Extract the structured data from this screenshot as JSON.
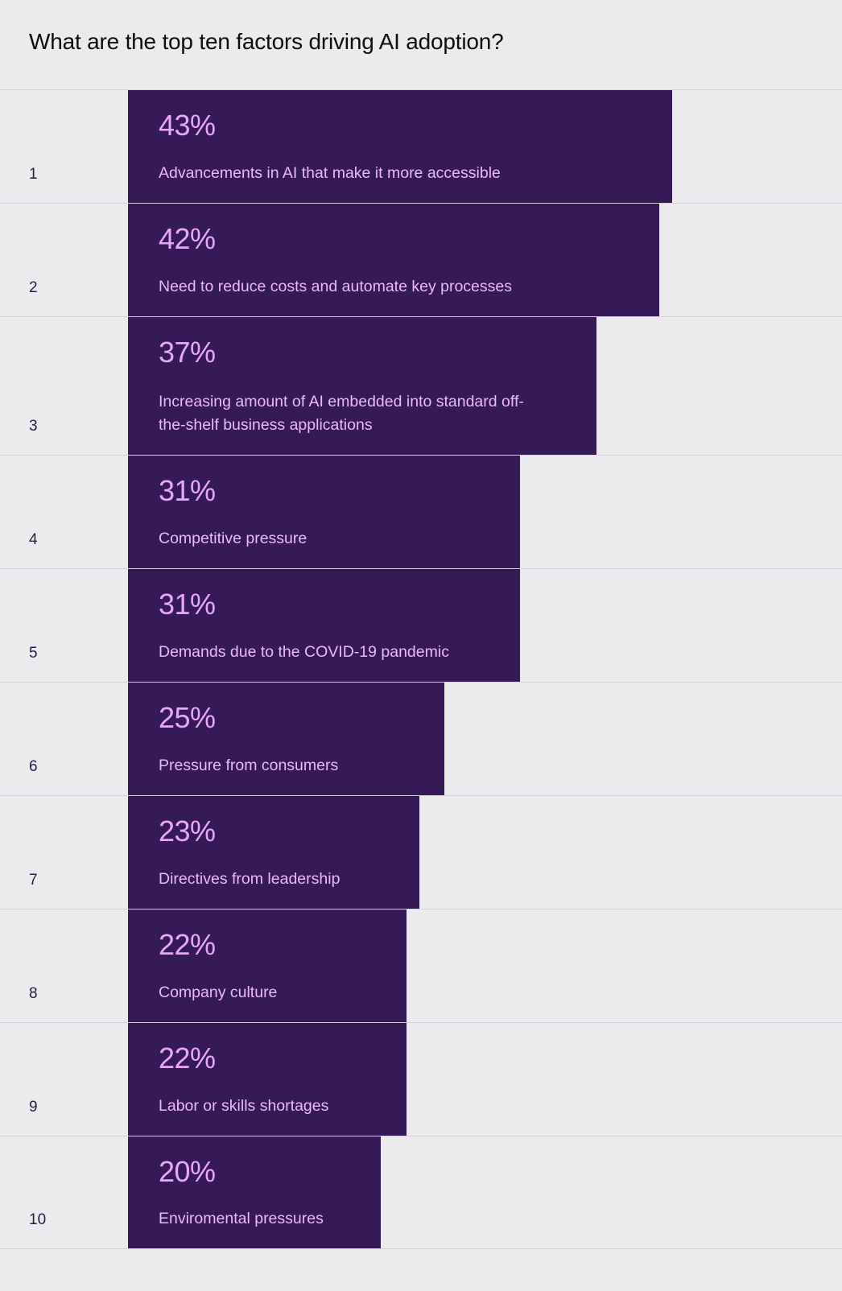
{
  "title": "What are the top ten factors driving AI adoption?",
  "colors": {
    "background": "#ebeaed",
    "bar": "#351a57",
    "value_text": "#e9a8f5",
    "label_text": "#ecbaf7",
    "rank_text": "#2a1a45"
  },
  "chart_data": {
    "type": "bar",
    "orientation": "horizontal",
    "title": "What are the top ten factors driving AI adoption?",
    "ranks": [
      "1",
      "2",
      "3",
      "4",
      "5",
      "6",
      "7",
      "8",
      "9",
      "10"
    ],
    "categories": [
      "Advancements in AI that make it more accessible",
      "Need to reduce costs and automate key processes",
      "Increasing amount of AI embedded into standard off-the-shelf business applications",
      "Competitive pressure",
      "Demands due to the COVID-19 pandemic",
      "Pressure from consumers",
      "Directives from leadership",
      "Company culture",
      "Labor or skills shortages",
      "Enviromental pressures"
    ],
    "values": [
      43,
      42,
      37,
      31,
      31,
      25,
      23,
      22,
      22,
      20
    ],
    "value_labels": [
      "43%",
      "42%",
      "37%",
      "31%",
      "31%",
      "25%",
      "23%",
      "22%",
      "22%",
      "20%"
    ],
    "unit": "%",
    "grid": false,
    "legend": "none"
  }
}
